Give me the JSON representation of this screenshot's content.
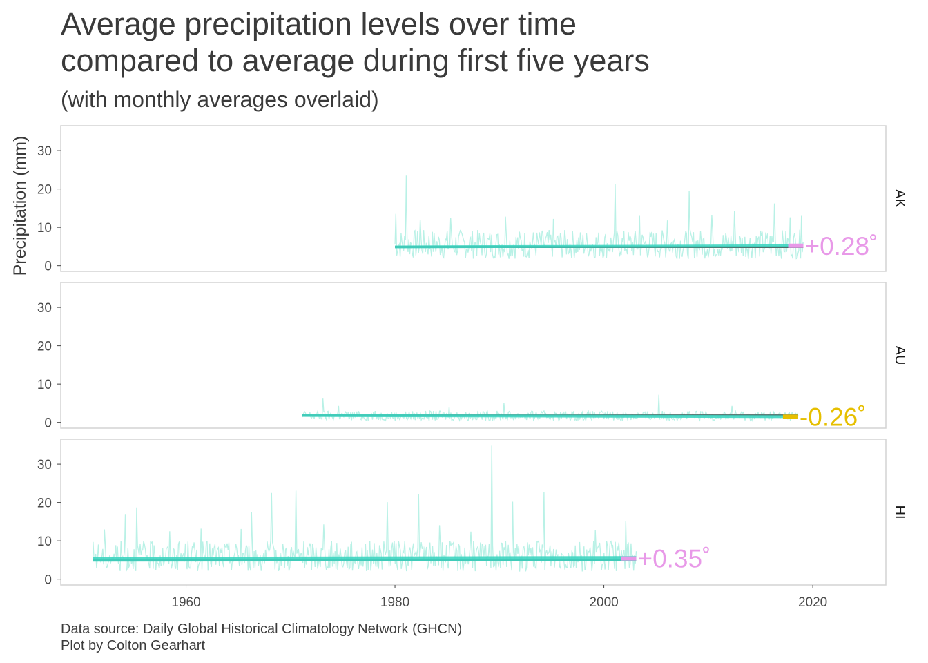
{
  "title_line1": "Average precipitation levels over time",
  "title_line2": "compared to average during first five years",
  "subtitle": "(with monthly averages overlaid)",
  "caption_line1": "Data source: Daily Global Historical Climatology Network (GHCN)",
  "caption_line2": "Plot by Colton Gearhart",
  "colors": {
    "monthly": "#b9f1e6",
    "trend": "#40d6c2",
    "baseline": "#4d6a66",
    "positive": "#e899e8",
    "negative": "#e6bf00",
    "panel_border": "#d3d3d3"
  },
  "chart_data": {
    "type": "line",
    "ylabel": "Precipitation (mm)",
    "xlabel": "",
    "x_ticks": [
      1960,
      1980,
      2000,
      2020
    ],
    "y_ticks": [
      0,
      10,
      20,
      30
    ],
    "xlim": [
      1948,
      2027
    ],
    "ylim": [
      -1.5,
      36.5
    ],
    "grid": false,
    "facets": [
      {
        "label": "AK",
        "x_range": [
          1980,
          2019.1
        ],
        "baseline": 4.9,
        "trend_start": 4.9,
        "trend_end": 5.2,
        "annotation": "+0.28˚",
        "direction": "positive",
        "monthly_mean": 5.2,
        "monthly_amp": 3.8,
        "monthly_spikes": [
          [
            1980.1,
            13.5
          ],
          [
            1981.1,
            23.5
          ],
          [
            1982.4,
            12.0
          ],
          [
            1985.3,
            12.5
          ],
          [
            1990.6,
            12.8
          ],
          [
            1995.2,
            12.2
          ],
          [
            2001.1,
            21.3
          ],
          [
            2003.4,
            13.0
          ],
          [
            2006.1,
            11.8
          ],
          [
            2008.2,
            19.4
          ],
          [
            2010.3,
            13.2
          ],
          [
            2012.5,
            14.3
          ],
          [
            2016.3,
            16.2
          ],
          [
            2017.8,
            12.6
          ],
          [
            2018.9,
            13.0
          ]
        ]
      },
      {
        "label": "AU",
        "x_range": [
          1971.1,
          2018.6
        ],
        "baseline": 1.8,
        "trend_start": 1.8,
        "trend_end": 1.5,
        "annotation": "-0.26˚",
        "direction": "negative",
        "monthly_mean": 1.6,
        "monthly_amp": 1.3,
        "monthly_spikes": [
          [
            1973.1,
            6.2
          ],
          [
            1974.6,
            4.3
          ],
          [
            1985.2,
            4.0
          ],
          [
            1990.4,
            5.1
          ],
          [
            2005.3,
            7.2
          ],
          [
            2012.3,
            4.3
          ]
        ]
      },
      {
        "label": "HI",
        "x_range": [
          1951.1,
          2003.1
        ],
        "baseline": 5.0,
        "trend_start": 5.2,
        "trend_end": 5.4,
        "annotation": "+0.35˚",
        "direction": "positive",
        "monthly_mean": 5.6,
        "monthly_amp": 4.0,
        "monthly_spikes": [
          [
            1952.2,
            13.0
          ],
          [
            1954.2,
            17.0
          ],
          [
            1955.3,
            18.7
          ],
          [
            1958.4,
            12.5
          ],
          [
            1961.4,
            13.2
          ],
          [
            1965.3,
            13.1
          ],
          [
            1966.3,
            17.5
          ],
          [
            1968.2,
            22.5
          ],
          [
            1970.5,
            23.1
          ],
          [
            1973.2,
            14.3
          ],
          [
            1979.3,
            20.1
          ],
          [
            1982.3,
            22.1
          ],
          [
            1984.3,
            14.1
          ],
          [
            1987.3,
            12.4
          ],
          [
            1989.3,
            34.8
          ],
          [
            1991.3,
            20.2
          ],
          [
            1994.3,
            22.8
          ],
          [
            1999.2,
            12.8
          ],
          [
            2002.1,
            15.2
          ]
        ]
      }
    ]
  }
}
